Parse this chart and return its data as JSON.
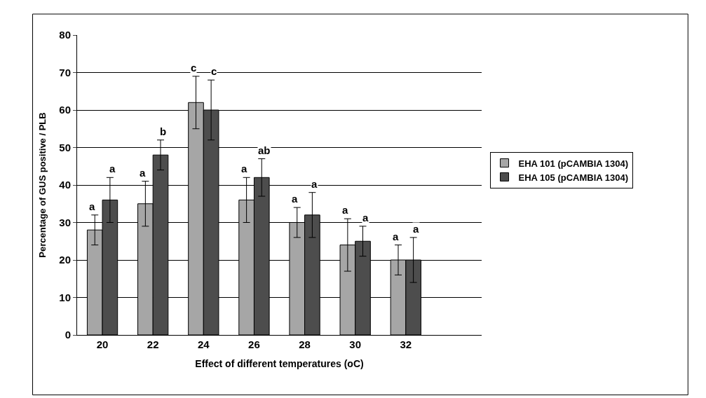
{
  "chart_data": {
    "type": "bar",
    "xlabel": "Effect of different temperatures (oC)",
    "ylabel": "Percentage of GUS positive / PLB",
    "categories": [
      "20",
      "22",
      "24",
      "26",
      "28",
      "30",
      "32",
      null
    ],
    "series": [
      {
        "name": "EHA 101 (pCAMBIA 1304)",
        "color": "#a6a6a6",
        "values": [
          28,
          35,
          62,
          36,
          30,
          24,
          20,
          null
        ],
        "errors": [
          4,
          6,
          7,
          6,
          4,
          7,
          4,
          null
        ],
        "value_labels": [
          "a",
          "a",
          "c",
          "a",
          "a",
          "a",
          "a",
          null
        ]
      },
      {
        "name": "EHA 105 (pCAMBIA 1304)",
        "color": "#4d4d4d",
        "values": [
          36,
          48,
          60,
          42,
          32,
          25,
          20,
          null
        ],
        "errors": [
          6,
          4,
          8,
          5,
          6,
          4,
          6,
          null
        ],
        "value_labels": [
          "a",
          "b",
          "c",
          "ab",
          "a",
          "a",
          "a",
          null
        ]
      }
    ],
    "ylim": [
      0,
      80
    ],
    "yticks": [
      0,
      10,
      20,
      30,
      40,
      50,
      60,
      70,
      80
    ],
    "grid": "y",
    "legend": "right"
  }
}
